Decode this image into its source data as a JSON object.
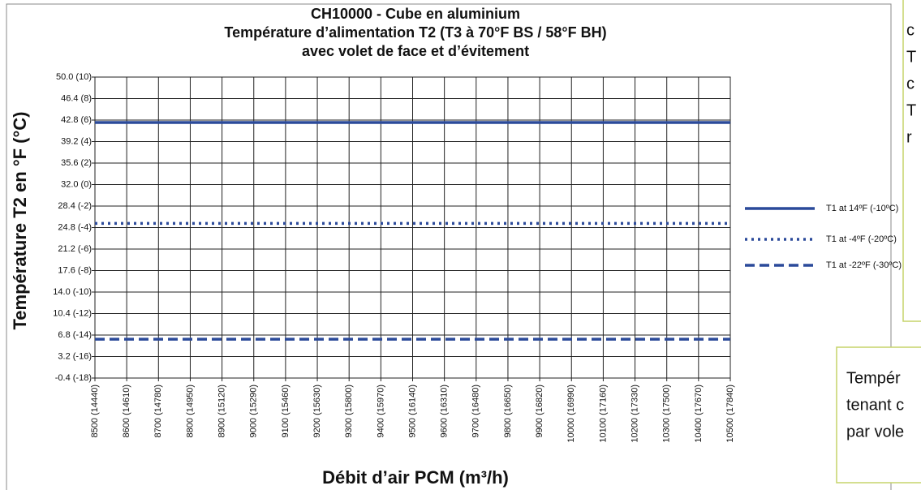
{
  "chart_data": {
    "type": "line",
    "title": [
      "CH10000 - Cube en aluminium",
      "Température d’alimentation T2 (T3 à 70°F BS / 58°F BH)",
      "avec volet de face et d’évitement"
    ],
    "x_label": "Débit d’air PCM (m³/h)",
    "y_label": "Température T2 en °F (°C)",
    "xlim": [
      8500,
      10500
    ],
    "xticks": [
      {
        "value": 8500,
        "label": "8500 (14440)"
      },
      {
        "value": 8600,
        "label": "8600 (14610)"
      },
      {
        "value": 8700,
        "label": "8700 (14780)"
      },
      {
        "value": 8800,
        "label": "8800 (14950)"
      },
      {
        "value": 8900,
        "label": "8900 (15120)"
      },
      {
        "value": 9000,
        "label": "9000 (15290)"
      },
      {
        "value": 9100,
        "label": "9100 (15460)"
      },
      {
        "value": 9200,
        "label": "9200 (15630)"
      },
      {
        "value": 9300,
        "label": "9300 (15800)"
      },
      {
        "value": 9400,
        "label": "9400 (15970)"
      },
      {
        "value": 9500,
        "label": "9500 (16140)"
      },
      {
        "value": 9600,
        "label": "9600 (16310)"
      },
      {
        "value": 9700,
        "label": "9700 (16480)"
      },
      {
        "value": 9800,
        "label": "9800 (16650)"
      },
      {
        "value": 9900,
        "label": "9900 (16820)"
      },
      {
        "value": 10000,
        "label": "10000 (16990)"
      },
      {
        "value": 10100,
        "label": "10100 (17160)"
      },
      {
        "value": 10200,
        "label": "10200 (17330)"
      },
      {
        "value": 10300,
        "label": "10300 (17500)"
      },
      {
        "value": 10400,
        "label": "10400 (17670)"
      },
      {
        "value": 10500,
        "label": "10500 (17840)"
      }
    ],
    "ylim": [
      -0.4,
      50
    ],
    "yticks": [
      {
        "value": 50,
        "label": "50.0 (10)"
      },
      {
        "value": 46.4,
        "label": "46.4 (8)"
      },
      {
        "value": 42.8,
        "label": "42.8 (6)"
      },
      {
        "value": 39.2,
        "label": "39.2 (4)"
      },
      {
        "value": 35.6,
        "label": "35.6 (2)"
      },
      {
        "value": 32,
        "label": "32.0 (0)"
      },
      {
        "value": 28.4,
        "label": "28.4 (-2)"
      },
      {
        "value": 24.8,
        "label": "24.8 (-4)"
      },
      {
        "value": 21.2,
        "label": "21.2 (-6)"
      },
      {
        "value": 17.6,
        "label": "17.6 (-8)"
      },
      {
        "value": 14,
        "label": "14.0 (-10)"
      },
      {
        "value": 10.4,
        "label": "10.4 (-12)"
      },
      {
        "value": 6.8,
        "label": "6.8 (-14)"
      },
      {
        "value": 3.2,
        "label": "3.2 (-16)"
      },
      {
        "value": -0.4,
        "label": "-0.4 (-18)"
      }
    ],
    "grid": true,
    "legend": "right",
    "series": [
      {
        "name": "T1 at 14ºF (-10ºC)",
        "color": "#2b4a9a",
        "dash": "solid",
        "x": [
          8500,
          10500
        ],
        "values": [
          42.4,
          42.4
        ]
      },
      {
        "name": "T1 at -4ºF (-20ºC)",
        "color": "#2b4a9a",
        "dash": "dotted",
        "x": [
          8500,
          10500
        ],
        "values": [
          25.5,
          25.5
        ]
      },
      {
        "name": "T1 at -22ºF (-30ºC)",
        "color": "#2b4a9a",
        "dash": "dashed",
        "x": [
          8500,
          10500
        ],
        "values": [
          6.1,
          6.1
        ]
      }
    ]
  },
  "side_notes": {
    "top_box": [
      "c",
      "T",
      "c",
      "T",
      "r"
    ],
    "bottom_box": [
      "Tempér",
      "tenant c",
      "par vole"
    ]
  }
}
